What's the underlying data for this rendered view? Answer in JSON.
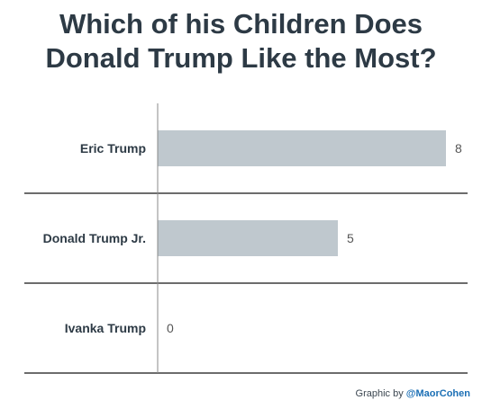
{
  "chart_data": {
    "type": "bar",
    "orientation": "horizontal",
    "title_lines": [
      "Which of his Children Does",
      "Donald Trump Like the Most?"
    ],
    "categories": [
      "Eric Trump",
      "Donald Trump Jr.",
      "Ivanka Trump"
    ],
    "values": [
      8,
      5,
      0
    ],
    "xlim": [
      0,
      8.6
    ],
    "grid": false,
    "bar_color": "#bfc8ce"
  },
  "footer": {
    "prefix": "Graphic by ",
    "handle": "@MaorCohen"
  }
}
